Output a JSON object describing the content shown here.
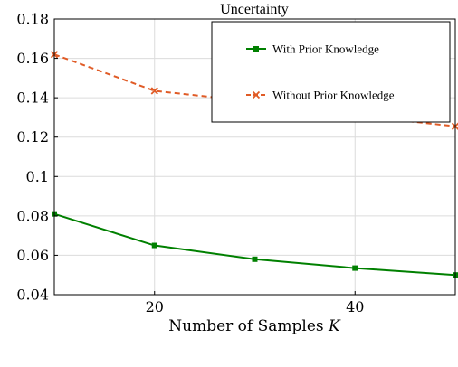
{
  "chart_data": {
    "type": "line",
    "title": "Uncertainty",
    "xlabel": "Number of Samples",
    "xlabel_var": "K",
    "ylabel": "",
    "xlim": [
      10,
      50
    ],
    "ylim": [
      0.04,
      0.18
    ],
    "x_ticks": [
      20,
      40
    ],
    "x_tick_labels": [
      "20",
      "40"
    ],
    "y_ticks": [
      0.04,
      0.06,
      0.08,
      0.1,
      0.12,
      0.14,
      0.16,
      0.18
    ],
    "y_tick_labels": [
      "0.04",
      "0.06",
      "0.08",
      "0.1",
      "0.12",
      "0.14",
      "0.16",
      "0.18"
    ],
    "grid": true,
    "legend_position": "top-right",
    "x": [
      10,
      20,
      30,
      40,
      50
    ],
    "series": [
      {
        "name": "With Prior Knowledge",
        "values": [
          0.081,
          0.065,
          0.058,
          0.0535,
          0.05
        ],
        "color": "#008000",
        "line_style": "solid",
        "marker": "square"
      },
      {
        "name": "Without Prior Knowledge",
        "values": [
          0.162,
          0.1435,
          0.138,
          0.131,
          0.1255
        ],
        "color": "#e05b26",
        "line_style": "dashed",
        "marker": "x"
      }
    ]
  }
}
